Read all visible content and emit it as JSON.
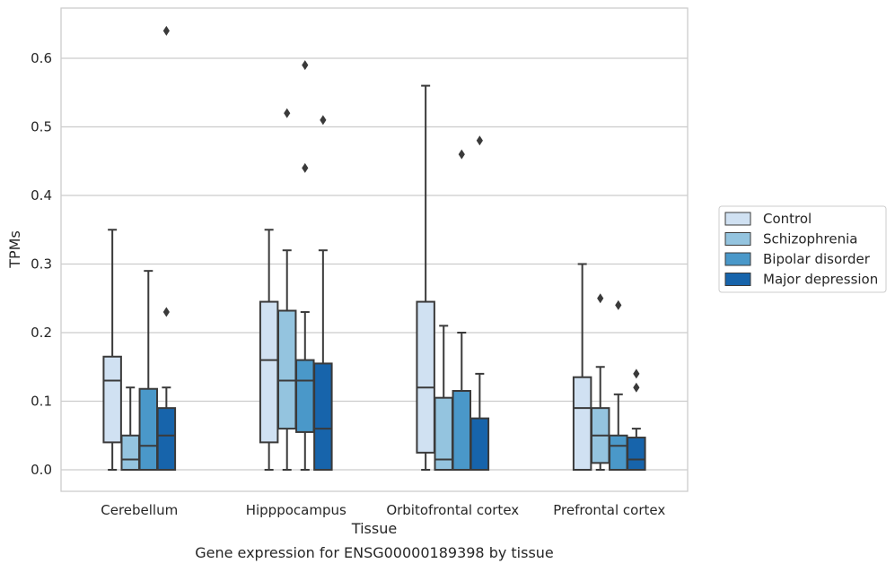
{
  "chart_data": {
    "type": "box",
    "title": "",
    "caption": "Gene expression for ENSG00000189398 by tissue",
    "xlabel": "Tissue",
    "ylabel": "TPMs",
    "ylim": [
      -0.03,
      0.675
    ],
    "yticks": [
      0.0,
      0.1,
      0.2,
      0.3,
      0.4,
      0.5,
      0.6
    ],
    "ytick_labels": [
      "0.0",
      "0.1",
      "0.2",
      "0.3",
      "0.4",
      "0.5",
      "0.6"
    ],
    "grid": "horizontal",
    "legend_position": "right",
    "categories": [
      "Cerebellum",
      "Hipppocampus",
      "Orbitofrontal cortex",
      "Prefrontal cortex"
    ],
    "series": [
      {
        "name": "Control",
        "color": "#d0e1f2",
        "boxes": [
          {
            "whislo": 0.0,
            "q1": 0.04,
            "med": 0.13,
            "q3": 0.165,
            "whishi": 0.35,
            "fliers": []
          },
          {
            "whislo": 0.0,
            "q1": 0.04,
            "med": 0.16,
            "q3": 0.245,
            "whishi": 0.35,
            "fliers": []
          },
          {
            "whislo": 0.0,
            "q1": 0.025,
            "med": 0.12,
            "q3": 0.245,
            "whishi": 0.56,
            "fliers": []
          },
          {
            "whislo": 0.0,
            "q1": 0.0,
            "med": 0.09,
            "q3": 0.135,
            "whishi": 0.3,
            "fliers": []
          }
        ]
      },
      {
        "name": "Schizophrenia",
        "color": "#94c4df",
        "boxes": [
          {
            "whislo": 0.0,
            "q1": 0.0,
            "med": 0.015,
            "q3": 0.05,
            "whishi": 0.12,
            "fliers": []
          },
          {
            "whislo": 0.0,
            "q1": 0.06,
            "med": 0.13,
            "q3": 0.232,
            "whishi": 0.32,
            "fliers": [
              0.52
            ]
          },
          {
            "whislo": 0.0,
            "q1": 0.0,
            "med": 0.015,
            "q3": 0.105,
            "whishi": 0.21,
            "fliers": []
          },
          {
            "whislo": 0.0,
            "q1": 0.01,
            "med": 0.05,
            "q3": 0.09,
            "whishi": 0.15,
            "fliers": [
              0.25
            ]
          }
        ]
      },
      {
        "name": "Bipolar disorder",
        "color": "#4a98c9",
        "boxes": [
          {
            "whislo": 0.0,
            "q1": 0.0,
            "med": 0.035,
            "q3": 0.118,
            "whishi": 0.29,
            "fliers": []
          },
          {
            "whislo": 0.0,
            "q1": 0.055,
            "med": 0.13,
            "q3": 0.16,
            "whishi": 0.23,
            "fliers": [
              0.59,
              0.44
            ]
          },
          {
            "whislo": 0.0,
            "q1": 0.0,
            "med": 0.115,
            "q3": 0.115,
            "whishi": 0.2,
            "fliers": [
              0.46
            ]
          },
          {
            "whislo": 0.0,
            "q1": 0.0,
            "med": 0.035,
            "q3": 0.05,
            "whishi": 0.11,
            "fliers": [
              0.24
            ]
          }
        ]
      },
      {
        "name": "Major depression",
        "color": "#1764ab",
        "boxes": [
          {
            "whislo": 0.0,
            "q1": 0.0,
            "med": 0.05,
            "q3": 0.09,
            "whishi": 0.12,
            "fliers": [
              0.64,
              0.23
            ]
          },
          {
            "whislo": 0.0,
            "q1": 0.0,
            "med": 0.06,
            "q3": 0.155,
            "whishi": 0.32,
            "fliers": [
              0.51
            ]
          },
          {
            "whislo": 0.0,
            "q1": 0.0,
            "med": 0.0,
            "q3": 0.075,
            "whishi": 0.14,
            "fliers": [
              0.48
            ]
          },
          {
            "whislo": 0.0,
            "q1": 0.0,
            "med": 0.015,
            "q3": 0.047,
            "whishi": 0.06,
            "fliers": [
              0.14,
              0.12
            ]
          }
        ]
      }
    ]
  }
}
